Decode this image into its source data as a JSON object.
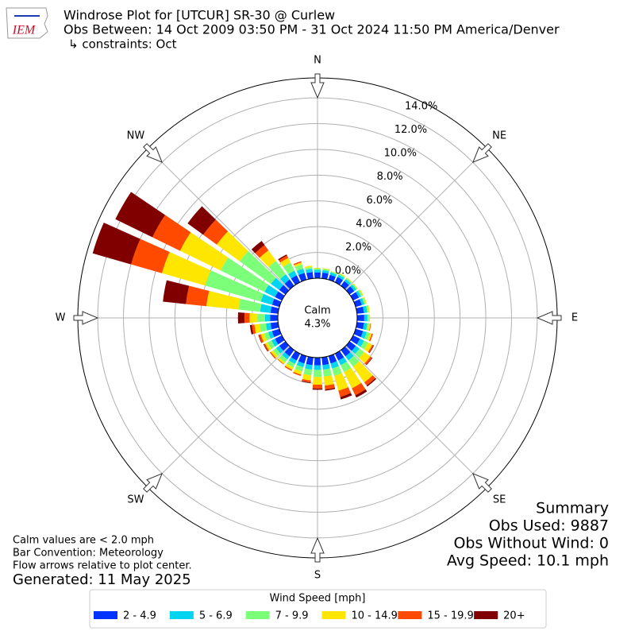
{
  "chart_data": {
    "type": "windrose",
    "title": "Windrose Plot for [UTCUR] SR-30 @ Curlew",
    "subtitle": "Obs Between: 14 Oct 2009 03:50 PM - 31 Oct 2024 11:50 PM America/Denver",
    "constraints": "↳ constraints: Oct",
    "logo_text": "IEM",
    "compass_labels": [
      "N",
      "NE",
      "E",
      "SE",
      "S",
      "SW",
      "W",
      "NW"
    ],
    "calm_label": "Calm",
    "calm_value": {
      "value": 4.3,
      "label": "4.3%"
    },
    "categories": [
      null,
      null,
      null,
      null,
      null,
      null,
      null,
      null,
      null,
      null,
      null,
      null,
      null,
      null,
      null,
      null,
      null,
      null,
      null,
      null,
      null,
      null,
      null,
      null,
      null,
      null,
      null,
      null,
      null,
      null,
      null,
      null,
      null,
      null,
      null,
      null
    ],
    "ylim": [
      0,
      15.55
    ],
    "yticks": [
      {
        "value": 0,
        "label": "0.0%"
      },
      {
        "value": 2,
        "label": "2.0%"
      },
      {
        "value": 4,
        "label": "4.0%"
      },
      {
        "value": 6,
        "label": "6.0%"
      },
      {
        "value": 8,
        "label": "8.0%"
      },
      {
        "value": 10,
        "label": "10.0%"
      },
      {
        "value": 12,
        "label": "12.0%"
      },
      {
        "value": 14,
        "label": "14.0%"
      }
    ],
    "grid": true,
    "legend_title": "Wind Speed [mph]",
    "series": [
      {
        "name": "2 - 4.9",
        "color": "#0033ff",
        "values": [
          0.45,
          0.45,
          0.4,
          0.45,
          0.45,
          0.45,
          0.5,
          0.5,
          0.55,
          0.55,
          0.55,
          0.6,
          0.6,
          0.6,
          0.6,
          0.6,
          0.6,
          0.6,
          0.6,
          0.6,
          0.6,
          0.6,
          0.6,
          0.6,
          0.6,
          0.6,
          0.6,
          0.6,
          0.6,
          0.6,
          0.6,
          0.6,
          0.6,
          0.6,
          0.55,
          0.5
        ]
      },
      {
        "name": "5 - 6.9",
        "color": "#00d4f0",
        "values": [
          0.2,
          0.2,
          0.2,
          0.2,
          0.2,
          0.2,
          0.2,
          0.2,
          0.25,
          0.25,
          0.25,
          0.3,
          0.35,
          0.35,
          0.4,
          0.4,
          0.4,
          0.35,
          0.35,
          0.35,
          0.3,
          0.3,
          0.3,
          0.3,
          0.3,
          0.3,
          0.35,
          0.4,
          0.8,
          0.9,
          0.9,
          0.8,
          0.5,
          0.4,
          0.35,
          0.25
        ]
      },
      {
        "name": "7 - 9.9",
        "color": "#7cff79",
        "values": [
          0.1,
          0.1,
          0.08,
          0.1,
          0.1,
          0.1,
          0.12,
          0.12,
          0.12,
          0.12,
          0.15,
          0.25,
          0.35,
          0.45,
          0.6,
          0.6,
          0.6,
          0.55,
          0.55,
          0.45,
          0.35,
          0.3,
          0.3,
          0.3,
          0.35,
          0.35,
          0.5,
          0.6,
          1.7,
          4.5,
          3.8,
          3.0,
          1.3,
          0.7,
          0.35,
          0.15
        ]
      },
      {
        "name": "10 - 14.9",
        "color": "#ffe600",
        "values": [
          0.05,
          0.05,
          0.02,
          0.05,
          0.05,
          0.05,
          0.08,
          0.08,
          0.08,
          0.08,
          0.1,
          0.15,
          0.35,
          0.6,
          1.5,
          1.4,
          1.2,
          0.7,
          0.6,
          0.4,
          0.25,
          0.2,
          0.15,
          0.2,
          0.2,
          0.25,
          0.4,
          0.6,
          2.5,
          3.5,
          3.5,
          2.2,
          1.0,
          0.4,
          0.15,
          0.1
        ]
      },
      {
        "name": "15 - 19.9",
        "color": "#ff4a00",
        "values": [
          0,
          0,
          0,
          0,
          0,
          0,
          0,
          0,
          0,
          0,
          0.05,
          0.1,
          0.1,
          0.15,
          0.3,
          0.6,
          0.5,
          0.3,
          0.3,
          0.15,
          0.1,
          0.1,
          0.05,
          0.1,
          0.1,
          0.15,
          0.2,
          0.4,
          1.6,
          2.5,
          2.4,
          1.3,
          0.5,
          0.2,
          0.1,
          0
        ]
      },
      {
        "name": "20+",
        "color": "#800000",
        "values": [
          0,
          0,
          0,
          0,
          0,
          0,
          0,
          0,
          0,
          0,
          0,
          0,
          0.05,
          0.05,
          0.1,
          0.2,
          0.2,
          0.1,
          0.1,
          0.05,
          0,
          0,
          0,
          0,
          0.05,
          0.05,
          0.15,
          0.5,
          1.8,
          3.1,
          3.2,
          1.5,
          0.4,
          0.1,
          0,
          0
        ]
      }
    ],
    "summary": [
      "Summary",
      "Obs Used: 9887",
      "Obs Without Wind: 0",
      "Avg Speed: 10.1 mph"
    ],
    "footnotes": [
      "Calm values are < 2.0 mph",
      "Bar Convention: Meteorology",
      "Flow arrows relative to plot center."
    ],
    "generated": "Generated: 11 May 2025"
  }
}
